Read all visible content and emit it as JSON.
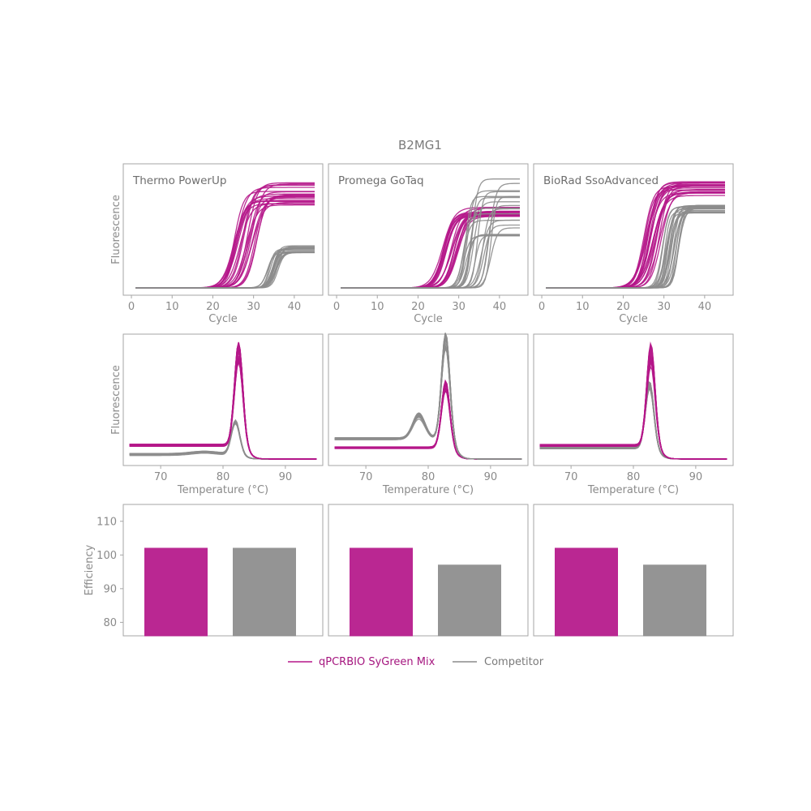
{
  "title": "B2MG1",
  "colors": {
    "qpcrbio": "#b5178a",
    "competitor": "#8c8c8c",
    "frame": "#a6a6a6",
    "text": "#8a8a8a"
  },
  "legend": [
    {
      "label": "qPCRBIO SyGreen Mix",
      "color": "#b5178a"
    },
    {
      "label": "Competitor",
      "color": "#8c8c8c"
    }
  ],
  "chart_data": [
    {
      "type": "line",
      "row": "amplification",
      "xlabel": "Cycle",
      "ylabel": "Fluorescence",
      "xlim": [
        -2,
        47
      ],
      "xticks": [
        "0",
        "10",
        "20",
        "30",
        "40"
      ],
      "panels": [
        {
          "label": "Thermo PowerUp",
          "series": [
            {
              "name": "qPCRBIO SyGreen Mix",
              "midpoint_range": [
                25,
                31
              ],
              "plateau_range": [
                0.72,
                0.92
              ]
            },
            {
              "name": "Competitor",
              "midpoint_range": [
                33,
                36
              ],
              "plateau_range": [
                0.3,
                0.38
              ]
            }
          ]
        },
        {
          "label": "Promega GoTaq",
          "series": [
            {
              "name": "qPCRBIO SyGreen Mix",
              "midpoint_range": [
                26,
                30
              ],
              "plateau_range": [
                0.62,
                0.7
              ]
            },
            {
              "name": "Competitor",
              "midpoint_range": [
                31,
                38
              ],
              "plateau_range": [
                0.45,
                0.95
              ]
            }
          ]
        },
        {
          "label": "BioRad SsoAdvanced",
          "series": [
            {
              "name": "qPCRBIO SyGreen Mix",
              "midpoint_range": [
                25,
                30
              ],
              "plateau_range": [
                0.8,
                0.93
              ]
            },
            {
              "name": "Competitor",
              "midpoint_range": [
                29,
                35
              ],
              "plateau_range": [
                0.65,
                0.72
              ]
            }
          ]
        }
      ]
    },
    {
      "type": "line",
      "row": "melt",
      "xlabel": "Temperature (°C)",
      "ylabel": "Fluorescence",
      "xlim": [
        64,
        96
      ],
      "xticks": [
        "70",
        "80",
        "90"
      ],
      "panels": [
        {
          "series": [
            {
              "name": "qPCRBIO SyGreen Mix",
              "peak_temp": 82.5,
              "peak_range": [
                0.72,
                0.92
              ],
              "baseline": 0.12
            },
            {
              "name": "Competitor",
              "peak_temp": 82.0,
              "peak_range": [
                0.28,
                0.3
              ],
              "baseline": 0.04
            }
          ]
        },
        {
          "series": [
            {
              "name": "qPCRBIO SyGreen Mix",
              "peak_temp": 82.8,
              "peak_range": [
                0.5,
                0.6
              ],
              "baseline": 0.1
            },
            {
              "name": "Competitor",
              "peak_temp": 82.8,
              "peak_range": [
                0.8,
                0.96
              ],
              "baseline": 0.18,
              "shoulder_temp": 78.5
            }
          ]
        },
        {
          "series": [
            {
              "name": "qPCRBIO SyGreen Mix",
              "peak_temp": 82.8,
              "peak_range": [
                0.68,
                0.92
              ],
              "baseline": 0.12
            },
            {
              "name": "Competitor",
              "peak_temp": 82.6,
              "peak_range": [
                0.52,
                0.6
              ],
              "baseline": 0.1
            }
          ]
        }
      ]
    },
    {
      "type": "bar",
      "row": "efficiency",
      "ylabel": "Efficiency",
      "ylim": [
        76,
        115
      ],
      "yticks": [
        "80",
        "90",
        "100",
        "110"
      ],
      "categories": [
        "qPCRBIO SyGreen Mix",
        "Competitor"
      ],
      "panels": [
        {
          "values": [
            102,
            102
          ]
        },
        {
          "values": [
            102,
            97
          ]
        },
        {
          "values": [
            102,
            97
          ]
        }
      ]
    }
  ]
}
